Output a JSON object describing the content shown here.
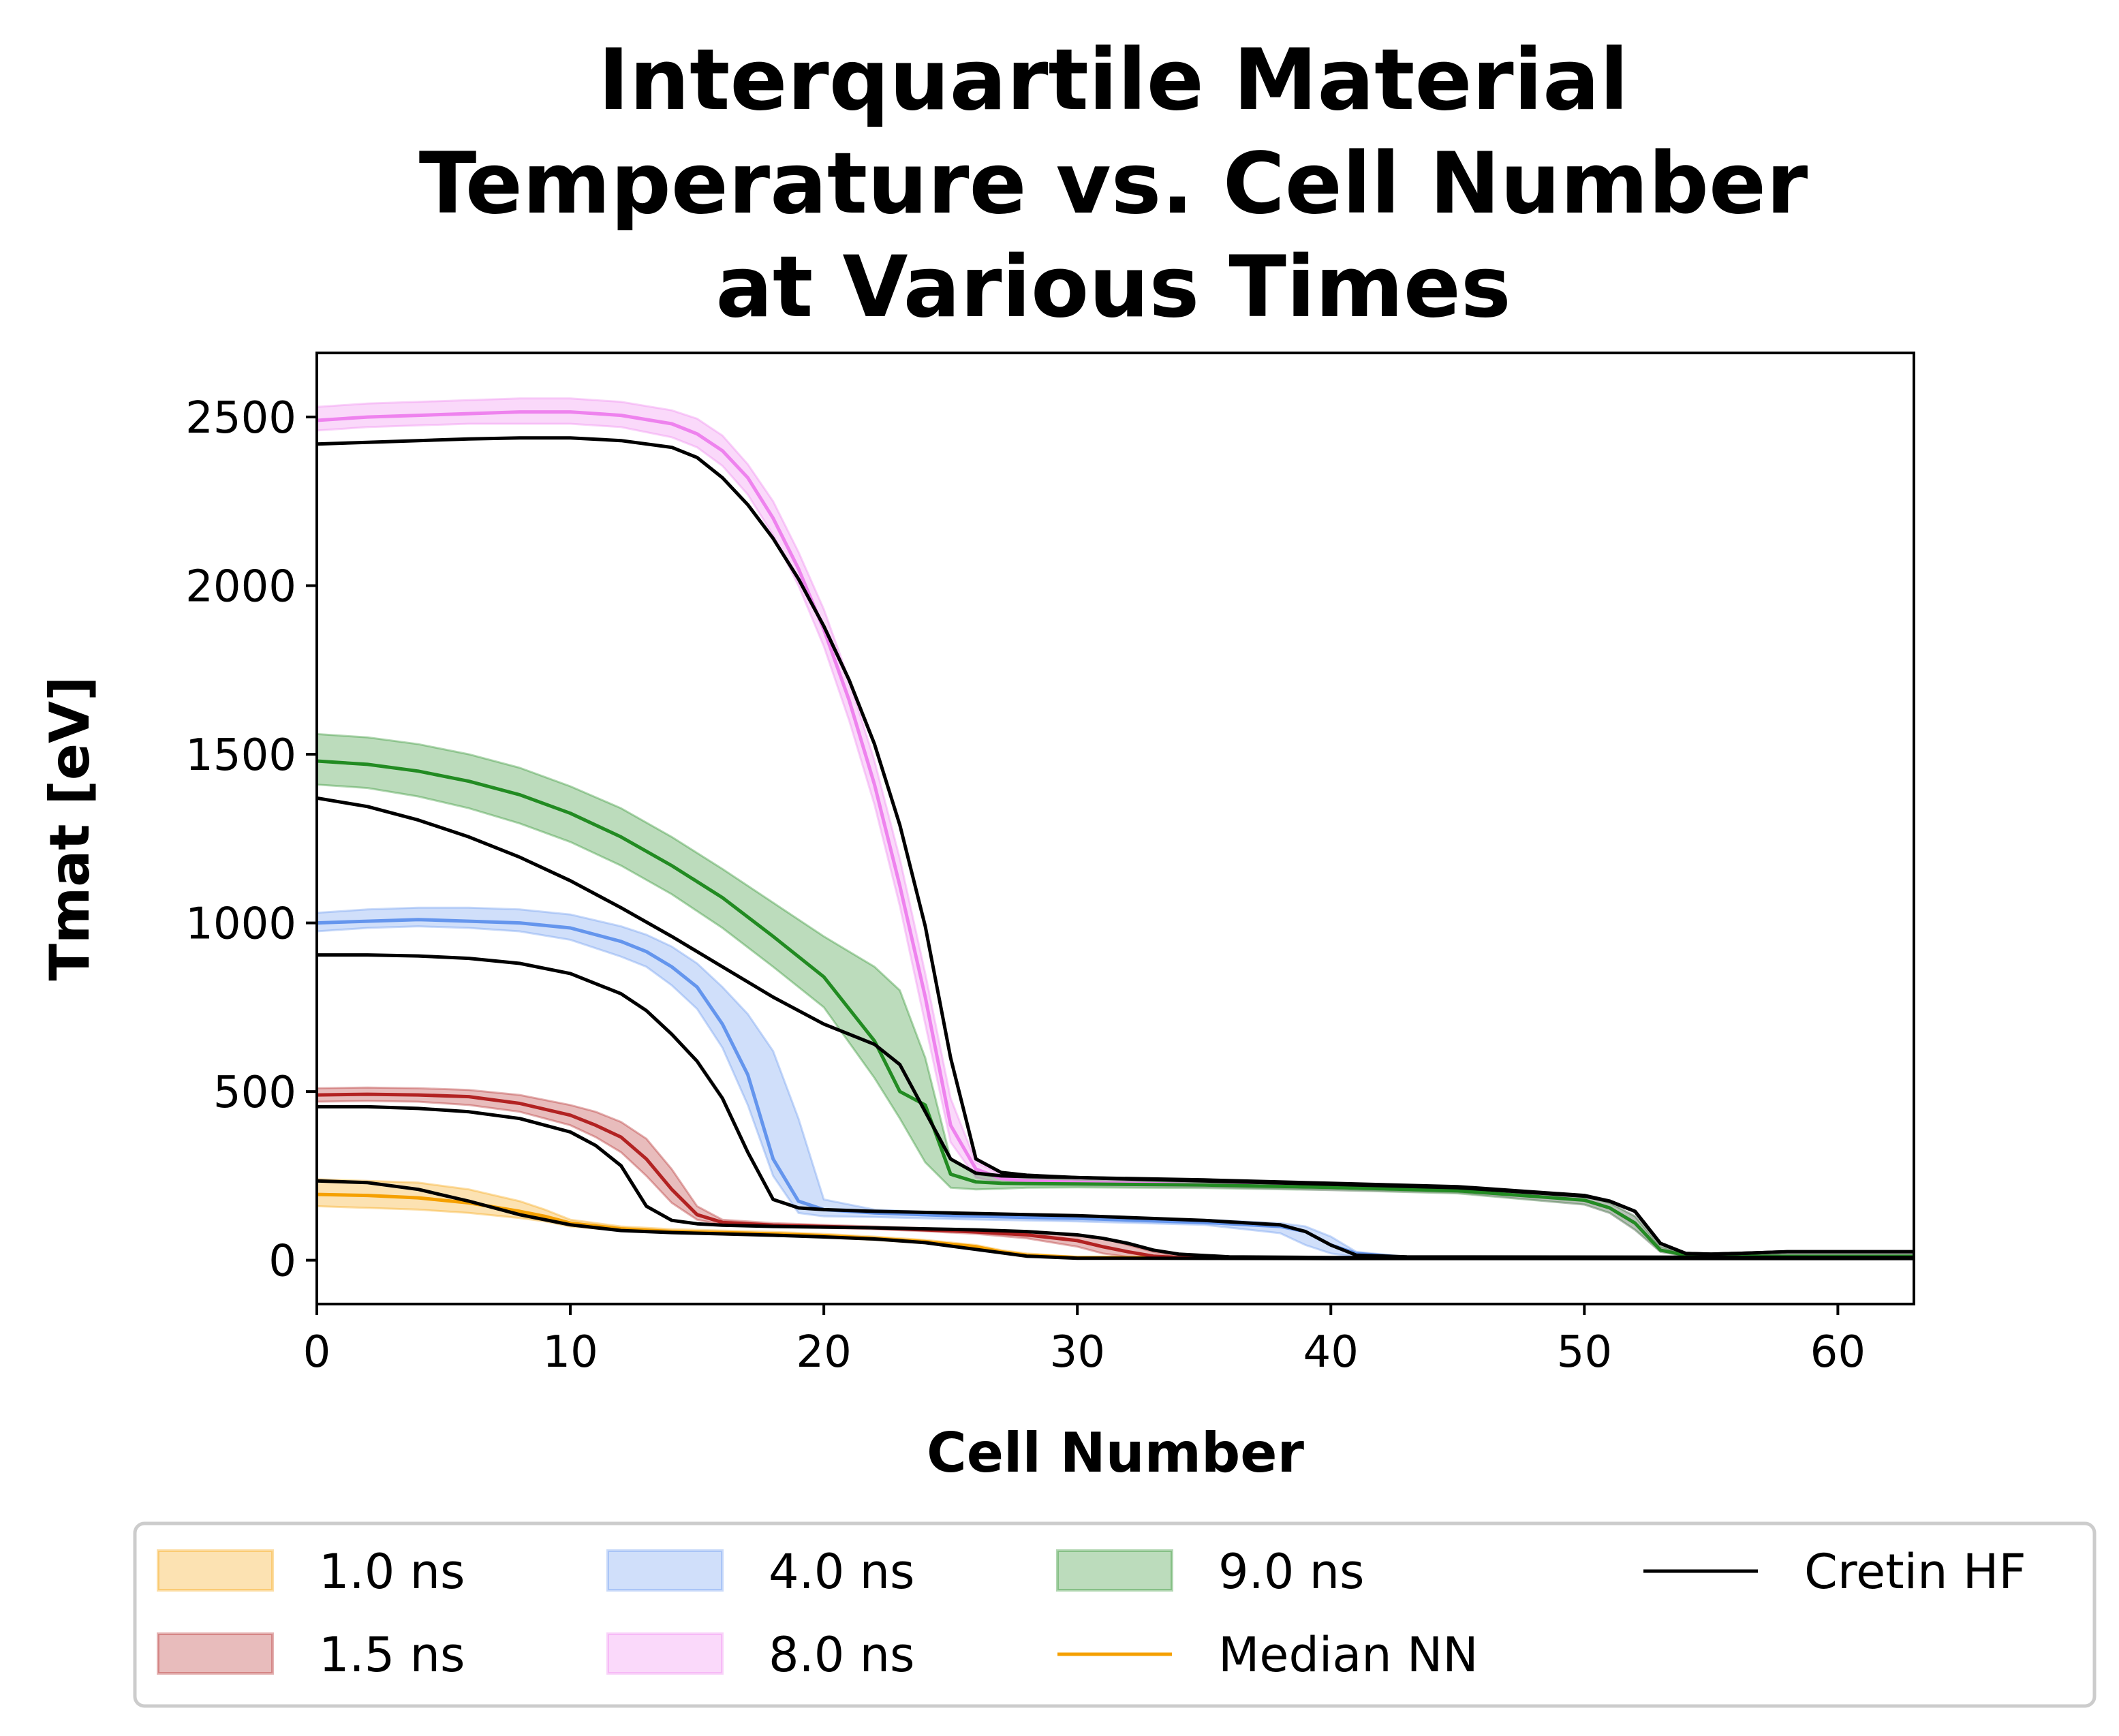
{
  "chart_data": {
    "type": "line",
    "title_lines": [
      "Interquartile Material",
      "Temperature vs. Cell Number",
      "at Various Times"
    ],
    "xlabel": "Cell Number",
    "ylabel": "Tmat [eV]",
    "xlim": [
      0,
      63
    ],
    "ylim": [
      -130,
      2690
    ],
    "xticks": [
      0,
      10,
      20,
      30,
      40,
      50,
      60
    ],
    "yticks": [
      0,
      500,
      1000,
      1500,
      2000,
      2500
    ],
    "grid": false,
    "legend_position": "below-plot",
    "bands": [
      {
        "name": "1.0 ns",
        "color": "#f5a000",
        "x": [
          0,
          2,
          4,
          6,
          8,
          9,
          10,
          12,
          14,
          16,
          18,
          20,
          22,
          24,
          26,
          27,
          28,
          30,
          40,
          63
        ],
        "lower": [
          160,
          155,
          150,
          140,
          125,
          115,
          100,
          88,
          80,
          76,
          72,
          68,
          60,
          50,
          35,
          20,
          10,
          5,
          5,
          5
        ],
        "upper": [
          240,
          235,
          230,
          210,
          175,
          150,
          120,
          100,
          92,
          88,
          84,
          78,
          70,
          60,
          45,
          30,
          20,
          10,
          8,
          8
        ],
        "median": [
          195,
          192,
          185,
          170,
          145,
          130,
          110,
          93,
          85,
          82,
          78,
          73,
          65,
          55,
          40,
          25,
          15,
          8,
          7,
          7
        ]
      },
      {
        "name": "1.5 ns",
        "color": "#b22222",
        "x": [
          0,
          2,
          4,
          6,
          8,
          10,
          11,
          12,
          13,
          14,
          15,
          16,
          18,
          20,
          22,
          24,
          26,
          28,
          30,
          31,
          32,
          33,
          34,
          40,
          63
        ],
        "lower": [
          470,
          472,
          470,
          460,
          440,
          400,
          365,
          320,
          250,
          170,
          120,
          105,
          100,
          96,
          92,
          86,
          78,
          65,
          40,
          20,
          10,
          5,
          5,
          5,
          5
        ],
        "upper": [
          510,
          512,
          510,
          505,
          490,
          460,
          440,
          410,
          360,
          270,
          160,
          120,
          110,
          105,
          100,
          95,
          90,
          85,
          75,
          65,
          45,
          25,
          12,
          8,
          8
        ],
        "median": [
          490,
          492,
          490,
          485,
          465,
          430,
          400,
          365,
          300,
          210,
          135,
          112,
          104,
          100,
          96,
          90,
          84,
          75,
          58,
          40,
          25,
          12,
          8,
          6,
          6
        ]
      },
      {
        "name": "4.0 ns",
        "color": "#6495ed",
        "x": [
          0,
          2,
          4,
          6,
          8,
          10,
          12,
          13,
          14,
          15,
          16,
          17,
          18,
          19,
          20,
          22,
          25,
          30,
          35,
          38,
          39,
          40,
          41,
          43,
          63
        ],
        "lower": [
          975,
          985,
          990,
          985,
          975,
          950,
          900,
          870,
          815,
          745,
          630,
          460,
          250,
          140,
          130,
          128,
          122,
          115,
          105,
          80,
          45,
          20,
          10,
          5,
          5
        ],
        "upper": [
          1030,
          1040,
          1045,
          1045,
          1040,
          1025,
          990,
          965,
          930,
          880,
          810,
          730,
          620,
          420,
          180,
          150,
          140,
          130,
          120,
          110,
          100,
          70,
          25,
          10,
          8
        ],
        "median": [
          1000,
          1005,
          1010,
          1005,
          1000,
          985,
          945,
          915,
          870,
          810,
          700,
          550,
          300,
          175,
          150,
          140,
          132,
          124,
          112,
          100,
          85,
          45,
          20,
          8,
          6
        ]
      },
      {
        "name": "8.0 ns",
        "color": "#ee82ee",
        "x": [
          0,
          2,
          4,
          6,
          8,
          10,
          12,
          14,
          15,
          16,
          17,
          18,
          19,
          20,
          21,
          22,
          23,
          24,
          25,
          26,
          27,
          28,
          30,
          35,
          40,
          45,
          50,
          51,
          52,
          53,
          54,
          55,
          56,
          63
        ],
        "lower": [
          2460,
          2470,
          2475,
          2480,
          2480,
          2480,
          2470,
          2440,
          2410,
          2355,
          2270,
          2150,
          2000,
          1820,
          1600,
          1350,
          1050,
          700,
          350,
          245,
          230,
          225,
          222,
          216,
          208,
          200,
          165,
          140,
          90,
          25,
          12,
          10,
          10,
          10
        ],
        "upper": [
          2530,
          2540,
          2545,
          2550,
          2555,
          2555,
          2545,
          2520,
          2495,
          2445,
          2360,
          2250,
          2100,
          1930,
          1720,
          1480,
          1190,
          850,
          480,
          290,
          255,
          245,
          240,
          232,
          224,
          214,
          190,
          170,
          130,
          40,
          20,
          15,
          15,
          15
        ],
        "median": [
          2490,
          2500,
          2505,
          2510,
          2515,
          2515,
          2505,
          2480,
          2450,
          2400,
          2320,
          2200,
          2050,
          1870,
          1660,
          1410,
          1110,
          780,
          400,
          270,
          242,
          235,
          231,
          224,
          216,
          207,
          178,
          155,
          110,
          30,
          15,
          12,
          12,
          12
        ]
      },
      {
        "name": "9.0 ns",
        "color": "#228b22",
        "x": [
          0,
          2,
          4,
          6,
          8,
          10,
          12,
          14,
          16,
          18,
          20,
          22,
          23,
          24,
          25,
          26,
          27,
          28,
          30,
          35,
          40,
          45,
          50,
          51,
          52,
          53,
          54,
          55,
          56,
          63
        ],
        "lower": [
          1410,
          1400,
          1375,
          1340,
          1295,
          1240,
          1170,
          1085,
          985,
          870,
          750,
          540,
          420,
          290,
          215,
          210,
          212,
          215,
          216,
          214,
          208,
          198,
          165,
          140,
          90,
          25,
          12,
          10,
          10,
          10
        ],
        "upper": [
          1560,
          1550,
          1530,
          1500,
          1460,
          1405,
          1340,
          1255,
          1160,
          1060,
          960,
          870,
          800,
          600,
          300,
          255,
          245,
          240,
          236,
          232,
          224,
          214,
          190,
          170,
          130,
          40,
          20,
          15,
          15,
          15
        ],
        "median": [
          1480,
          1470,
          1450,
          1420,
          1380,
          1325,
          1255,
          1170,
          1075,
          960,
          840,
          650,
          500,
          460,
          255,
          232,
          228,
          227,
          226,
          223,
          216,
          206,
          178,
          155,
          110,
          30,
          15,
          12,
          12,
          12
        ]
      }
    ],
    "cretin_hf": [
      {
        "time": "1.0 ns",
        "x": [
          0,
          2,
          4,
          6,
          8,
          10,
          12,
          14,
          16,
          18,
          20,
          22,
          24,
          26,
          28,
          30,
          40,
          63
        ],
        "y": [
          235,
          230,
          210,
          175,
          135,
          105,
          88,
          82,
          78,
          74,
          69,
          63,
          52,
          32,
          12,
          6,
          5,
          5
        ]
      },
      {
        "time": "1.5 ns",
        "x": [
          0,
          2,
          4,
          6,
          8,
          10,
          11,
          12,
          13,
          14,
          15,
          16,
          18,
          20,
          22,
          24,
          26,
          28,
          30,
          31,
          32,
          33,
          34,
          36,
          40,
          63
        ],
        "y": [
          455,
          455,
          450,
          440,
          420,
          380,
          340,
          280,
          160,
          118,
          108,
          104,
          100,
          98,
          96,
          93,
          90,
          85,
          75,
          65,
          50,
          30,
          18,
          10,
          8,
          8
        ]
      },
      {
        "time": "4.0 ns",
        "x": [
          0,
          2,
          4,
          6,
          8,
          10,
          12,
          13,
          14,
          15,
          16,
          17,
          18,
          19,
          20,
          22,
          25,
          30,
          35,
          38,
          39,
          40,
          41,
          43,
          63
        ],
        "y": [
          905,
          905,
          902,
          895,
          880,
          850,
          790,
          740,
          670,
          590,
          480,
          320,
          180,
          155,
          150,
          145,
          140,
          132,
          118,
          105,
          85,
          45,
          15,
          10,
          8
        ]
      },
      {
        "time": "8.0 ns",
        "x": [
          0,
          2,
          4,
          6,
          8,
          10,
          12,
          14,
          15,
          16,
          17,
          18,
          19,
          20,
          21,
          22,
          23,
          24,
          25,
          26,
          27,
          28,
          30,
          35,
          40,
          45,
          50,
          51,
          52,
          53,
          54,
          55,
          56,
          58,
          60,
          63
        ],
        "y": [
          2420,
          2425,
          2430,
          2435,
          2438,
          2438,
          2430,
          2410,
          2380,
          2320,
          2240,
          2140,
          2020,
          1880,
          1720,
          1530,
          1290,
          990,
          600,
          300,
          260,
          252,
          245,
          235,
          225,
          215,
          190,
          175,
          145,
          50,
          20,
          18,
          20,
          25,
          25,
          25
        ]
      },
      {
        "time": "9.0 ns",
        "x": [
          0,
          2,
          4,
          6,
          8,
          10,
          12,
          14,
          16,
          18,
          20,
          22,
          23,
          24,
          25,
          26,
          27,
          28,
          30,
          35,
          40,
          45,
          50,
          51,
          52,
          53,
          54,
          55,
          56,
          58,
          60,
          63
        ],
        "y": [
          1370,
          1345,
          1305,
          1255,
          1195,
          1125,
          1045,
          960,
          870,
          780,
          700,
          640,
          580,
          440,
          300,
          258,
          250,
          248,
          245,
          238,
          228,
          218,
          192,
          175,
          145,
          50,
          20,
          18,
          20,
          25,
          25,
          25
        ]
      }
    ],
    "legend": [
      {
        "label": "1.0 ns",
        "kind": "band",
        "color": "#f5a000"
      },
      {
        "label": "1.5 ns",
        "kind": "band",
        "color": "#b22222"
      },
      {
        "label": "4.0 ns",
        "kind": "band",
        "color": "#6495ed"
      },
      {
        "label": "8.0 ns",
        "kind": "band",
        "color": "#ee82ee"
      },
      {
        "label": "9.0 ns",
        "kind": "band",
        "color": "#228b22"
      },
      {
        "label": "Median NN",
        "kind": "line",
        "color": "#f5a000"
      },
      {
        "label": "Cretin HF",
        "kind": "line",
        "color": "#000000"
      }
    ]
  }
}
